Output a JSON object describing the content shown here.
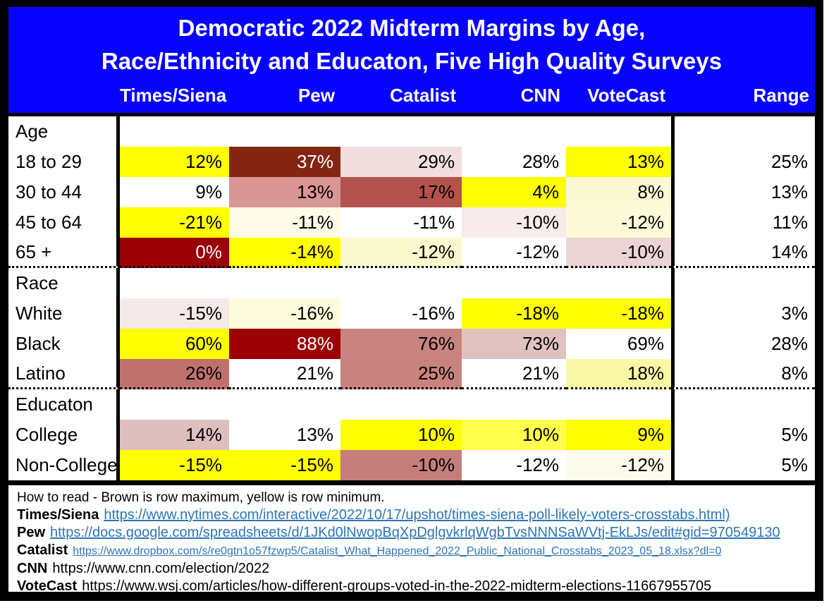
{
  "header": {
    "title_line1": "Democratic 2022 Midterm Margins by Age,",
    "title_line2": "Race/Ethnicity and Educaton, Five High Quality Surveys"
  },
  "table": {
    "columns": [
      "Times/Siena",
      "Pew",
      "Catalist",
      "CNN",
      "VoteCast",
      "Range"
    ],
    "sections": [
      {
        "header": "Age",
        "rows": [
          {
            "label": "18 to 29",
            "cells": [
              {
                "v": "12%",
                "bg": "#FFFF00",
                "fg": "#000000"
              },
              {
                "v": "37%",
                "bg": "#842512",
                "fg": "#FFFFFF"
              },
              {
                "v": "29%",
                "bg": "#F1DEDD",
                "fg": "#000000"
              },
              {
                "v": "28%",
                "bg": "#FFFFFF",
                "fg": "#000000"
              },
              {
                "v": "13%",
                "bg": "#FFFF00",
                "fg": "#000000"
              }
            ],
            "range": "25%"
          },
          {
            "label": "30 to 44",
            "cells": [
              {
                "v": "9%",
                "bg": "#FFFFFF",
                "fg": "#000000"
              },
              {
                "v": "13%",
                "bg": "#D89694",
                "fg": "#000000"
              },
              {
                "v": "17%",
                "bg": "#B4524E",
                "fg": "#000000"
              },
              {
                "v": "4%",
                "bg": "#FFFF00",
                "fg": "#000000"
              },
              {
                "v": "8%",
                "bg": "#FBF9D4",
                "fg": "#000000"
              }
            ],
            "range": "13%"
          },
          {
            "label": "45 to 64",
            "cells": [
              {
                "v": "-21%",
                "bg": "#FFFF00",
                "fg": "#000000"
              },
              {
                "v": "-11%",
                "bg": "#FEFCE9",
                "fg": "#000000"
              },
              {
                "v": "-11%",
                "bg": "#FFFFFF",
                "fg": "#000000"
              },
              {
                "v": "-10%",
                "bg": "#F7ECEB",
                "fg": "#000000"
              },
              {
                "v": "-12%",
                "bg": "#FCFAD8",
                "fg": "#000000"
              }
            ],
            "range": "11%"
          },
          {
            "label": "65 +",
            "cells": [
              {
                "v": "0%",
                "bg": "#9B0005",
                "fg": "#FFFFFF"
              },
              {
                "v": "-14%",
                "bg": "#FFFF00",
                "fg": "#000000"
              },
              {
                "v": "-12%",
                "bg": "#FAF8CD",
                "fg": "#000000"
              },
              {
                "v": "-12%",
                "bg": "#FFFFFF",
                "fg": "#000000"
              },
              {
                "v": "-10%",
                "bg": "#ECD4D6",
                "fg": "#000000"
              }
            ],
            "range": "14%"
          }
        ]
      },
      {
        "header": "Race",
        "rows": [
          {
            "label": "White",
            "cells": [
              {
                "v": "-15%",
                "bg": "#F5E8E8",
                "fg": "#000000"
              },
              {
                "v": "-16%",
                "bg": "#FDFBDC",
                "fg": "#000000"
              },
              {
                "v": "-16%",
                "bg": "#FFFFFF",
                "fg": "#000000"
              },
              {
                "v": "-18%",
                "bg": "#FFFF00",
                "fg": "#000000"
              },
              {
                "v": "-18%",
                "bg": "#FFFF00",
                "fg": "#000000"
              }
            ],
            "range": "3%"
          },
          {
            "label": "Black",
            "cells": [
              {
                "v": "60%",
                "bg": "#FFFF00",
                "fg": "#000000"
              },
              {
                "v": "88%",
                "bg": "#9B0004",
                "fg": "#FFFFFF"
              },
              {
                "v": "76%",
                "bg": "#C98480",
                "fg": "#000000"
              },
              {
                "v": "73%",
                "bg": "#E2C1C1",
                "fg": "#000000"
              },
              {
                "v": "69%",
                "bg": "#FFFFFF",
                "fg": "#000000"
              }
            ],
            "range": "28%"
          },
          {
            "label": "Latino",
            "cells": [
              {
                "v": "26%",
                "bg": "#C1716D",
                "fg": "#000000"
              },
              {
                "v": "21%",
                "bg": "#FFFFFF",
                "fg": "#000000"
              },
              {
                "v": "25%",
                "bg": "#C9827E",
                "fg": "#000000"
              },
              {
                "v": "21%",
                "bg": "#FFFFFF",
                "fg": "#000000"
              },
              {
                "v": "18%",
                "bg": "#FAF8A4",
                "fg": "#000000"
              }
            ],
            "range": "8%"
          }
        ]
      },
      {
        "header": "Educaton",
        "rows": [
          {
            "label": "College",
            "cells": [
              {
                "v": "14%",
                "bg": "#DFBFBE",
                "fg": "#000000"
              },
              {
                "v": "13%",
                "bg": "#FFFFFF",
                "fg": "#000000"
              },
              {
                "v": "10%",
                "bg": "#FFFF00",
                "fg": "#000000"
              },
              {
                "v": "10%",
                "bg": "#FFFF4D",
                "fg": "#000000"
              },
              {
                "v": "9%",
                "bg": "#FFFF00",
                "fg": "#000000"
              }
            ],
            "range": "5%"
          },
          {
            "label": "Non-College",
            "cells": [
              {
                "v": "-15%",
                "bg": "#FFFF00",
                "fg": "#000000"
              },
              {
                "v": "-15%",
                "bg": "#FFFF00",
                "fg": "#000000"
              },
              {
                "v": "-10%",
                "bg": "#C57E7A",
                "fg": "#000000"
              },
              {
                "v": "-12%",
                "bg": "#FFFFFF",
                "fg": "#000000"
              },
              {
                "v": "-12%",
                "bg": "#FDFCEC",
                "fg": "#000000"
              }
            ],
            "range": "5%"
          }
        ]
      }
    ]
  },
  "footer": {
    "legend": "How to read - Brown is row maximum, yellow is row minimum.",
    "sources": [
      {
        "name": "Times/Siena",
        "url": "https://www.nytimes.com/interactive/2022/10/17/upshot/times-siena-poll-likely-voters-crosstabs.html)",
        "is_link": true,
        "small": false
      },
      {
        "name": "Pew",
        "url": "https://docs.google.com/spreadsheets/d/1JKd0lNwopBqXpDglgvkrlqWgbTvsNNNSaWVtj-EkLJs/edit#gid=970549130",
        "is_link": true,
        "small": false
      },
      {
        "name": "Catalist",
        "url": "https://www.dropbox.com/s/re0gtn1o57fzwp5/Catalist_What_Happened_2022_Public_National_Crosstabs_2023_05_18.xlsx?dl=0",
        "is_link": true,
        "small": true
      },
      {
        "name": "CNN",
        "url": "https://www.cnn.com/election/2022",
        "is_link": false,
        "small": false
      },
      {
        "name": "VoteCast",
        "url": "https://www.wsj.com/articles/how-different-groups-voted-in-the-2022-midterm-elections-11667955705",
        "is_link": false,
        "small": false
      }
    ]
  },
  "colors": {
    "header_bg": "#0702FE",
    "header_text": "#FFFFFF",
    "row_max_brown": "#9B0005",
    "row_min_yellow": "#FFFF00",
    "link_blue": "#2E75B6"
  },
  "chart_data": {
    "type": "heatmap",
    "title": "Democratic 2022 Midterm Margins by Age, Race/Ethnicity and Educaton, Five High Quality Surveys",
    "columns": [
      "Times/Siena",
      "Pew",
      "Catalist",
      "CNN",
      "VoteCast"
    ],
    "value_unit": "percent margin",
    "legend": "Brown is row maximum, yellow is row minimum",
    "groups": [
      {
        "name": "Age",
        "rows": [
          {
            "label": "18 to 29",
            "values": [
              12,
              37,
              29,
              28,
              13
            ],
            "range": 25
          },
          {
            "label": "30 to 44",
            "values": [
              9,
              13,
              17,
              4,
              8
            ],
            "range": 13
          },
          {
            "label": "45 to 64",
            "values": [
              -21,
              -11,
              -11,
              -10,
              -12
            ],
            "range": 11
          },
          {
            "label": "65 +",
            "values": [
              0,
              -14,
              -12,
              -12,
              -10
            ],
            "range": 14
          }
        ]
      },
      {
        "name": "Race",
        "rows": [
          {
            "label": "White",
            "values": [
              -15,
              -16,
              -16,
              -18,
              -18
            ],
            "range": 3
          },
          {
            "label": "Black",
            "values": [
              60,
              88,
              76,
              73,
              69
            ],
            "range": 28
          },
          {
            "label": "Latino",
            "values": [
              26,
              21,
              25,
              21,
              18
            ],
            "range": 8
          }
        ]
      },
      {
        "name": "Educaton",
        "rows": [
          {
            "label": "College",
            "values": [
              14,
              13,
              10,
              10,
              9
            ],
            "range": 5
          },
          {
            "label": "Non-College",
            "values": [
              -15,
              -15,
              -10,
              -12,
              -12
            ],
            "range": 5
          }
        ]
      }
    ]
  }
}
